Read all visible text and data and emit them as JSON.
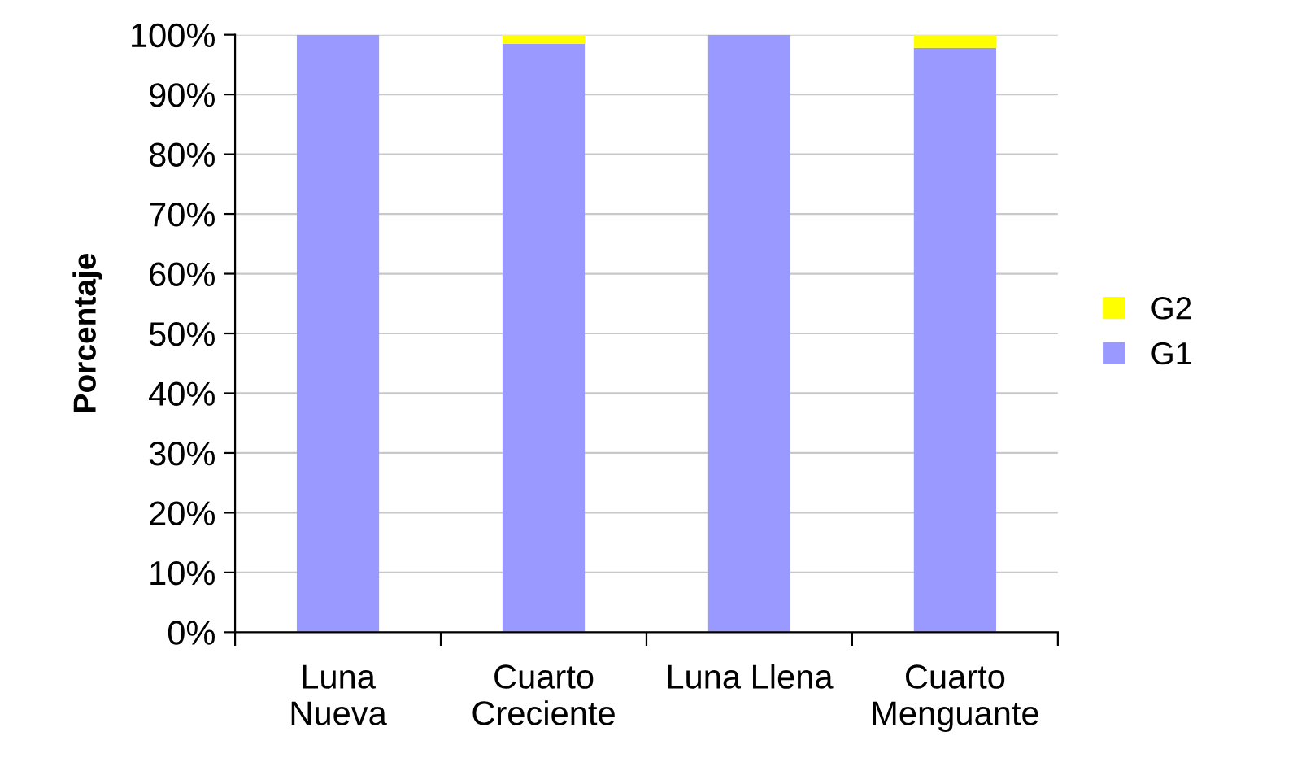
{
  "chart_data": {
    "type": "bar",
    "stacked": true,
    "ylabel": "Porcentaje",
    "categories": [
      "Luna\nNueva",
      "Cuarto\nCreciente",
      "Luna Llena",
      "Cuarto\nMenguante"
    ],
    "series": [
      {
        "name": "G1",
        "color": "#9999ff",
        "values": [
          100,
          98.5,
          100,
          97.8
        ]
      },
      {
        "name": "G2",
        "color": "#ffff00",
        "values": [
          0,
          1.5,
          0,
          2.2
        ]
      }
    ],
    "ylim": [
      0,
      100
    ],
    "yticks": [
      {
        "value": 0,
        "label": "0%"
      },
      {
        "value": 10,
        "label": "10%"
      },
      {
        "value": 20,
        "label": "20%"
      },
      {
        "value": 30,
        "label": "30%"
      },
      {
        "value": 40,
        "label": "40%"
      },
      {
        "value": 50,
        "label": "50%"
      },
      {
        "value": 60,
        "label": "60%"
      },
      {
        "value": 70,
        "label": "70%"
      },
      {
        "value": 80,
        "label": "80%"
      },
      {
        "value": 90,
        "label": "90%"
      },
      {
        "value": 100,
        "label": "100%"
      }
    ],
    "grid": "y",
    "legend": "right"
  }
}
